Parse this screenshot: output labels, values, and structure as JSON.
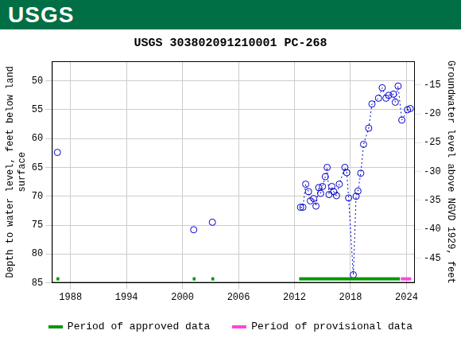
{
  "header": {
    "logo": "USGS"
  },
  "chart_data": {
    "type": "line",
    "title": "USGS 303802091210001 PC-268",
    "y_label": "Depth to water level, feet below land surface",
    "y2_label": "Groundwater level above NGVD 1929, feet",
    "x": [
      1986.6,
      1994,
      2001.2,
      2002,
      2003.2,
      2008,
      2012.65,
      2012.9,
      2013.2,
      2013.5,
      2013.7,
      2014.05,
      2014.3,
      2014.6,
      2014.8,
      2015.0,
      2015.3,
      2015.5,
      2015.7,
      2016.0,
      2016.2,
      2016.5,
      2016.8,
      2017.4,
      2017.6,
      2017.8,
      2018.3,
      2018.6,
      2018.8,
      2019.1,
      2019.4,
      2019.95,
      2020.3,
      2021.0,
      2021.4,
      2021.8,
      2022.1,
      2022.6,
      2022.8,
      2023.1,
      2023.5,
      2024.1,
      2024.4
    ],
    "series": [
      {
        "color": "#0000cc",
        "marker": "circle",
        "line_style": "dotted",
        "values": [
          62.4,
          null,
          75.8,
          null,
          74.5,
          null,
          71.9,
          71.9,
          67.9,
          69.2,
          70.8,
          70.4,
          71.7,
          68.5,
          69.5,
          68.3,
          66.6,
          65.0,
          69.7,
          68.3,
          69.2,
          69.9,
          67.9,
          65.0,
          65.9,
          70.3,
          83.6,
          70.0,
          69.1,
          66.0,
          61.0,
          58.2,
          54.0,
          53.0,
          51.2,
          53.0,
          52.5,
          52.3,
          53.7,
          50.9,
          56.8,
          55.0,
          54.8
        ]
      }
    ],
    "xlim": [
      1986.0,
      2024.9
    ],
    "xticks": [
      1988,
      1994,
      2000,
      2006,
      2012,
      2018,
      2024
    ],
    "ylim": [
      85,
      46.6
    ],
    "yticks": [
      50,
      55,
      60,
      65,
      70,
      75,
      80,
      85
    ],
    "y2lim": [
      -49.3,
      -10.9
    ],
    "y2ticks": [
      -45,
      -40,
      -35,
      -30,
      -25,
      -20,
      -15
    ],
    "grid": true,
    "legend": "bottom",
    "periods": [
      {
        "name": "Period of approved data",
        "color": "#009900",
        "ranges": [
          [
            1986.5,
            1986.8
          ],
          [
            2001.1,
            2001.4
          ],
          [
            2003.1,
            2003.4
          ],
          [
            2012.5,
            2023.3
          ]
        ]
      },
      {
        "name": "Period of provisional data",
        "color": "#ff44dd",
        "ranges": [
          [
            2023.4,
            2024.5
          ]
        ]
      }
    ]
  }
}
